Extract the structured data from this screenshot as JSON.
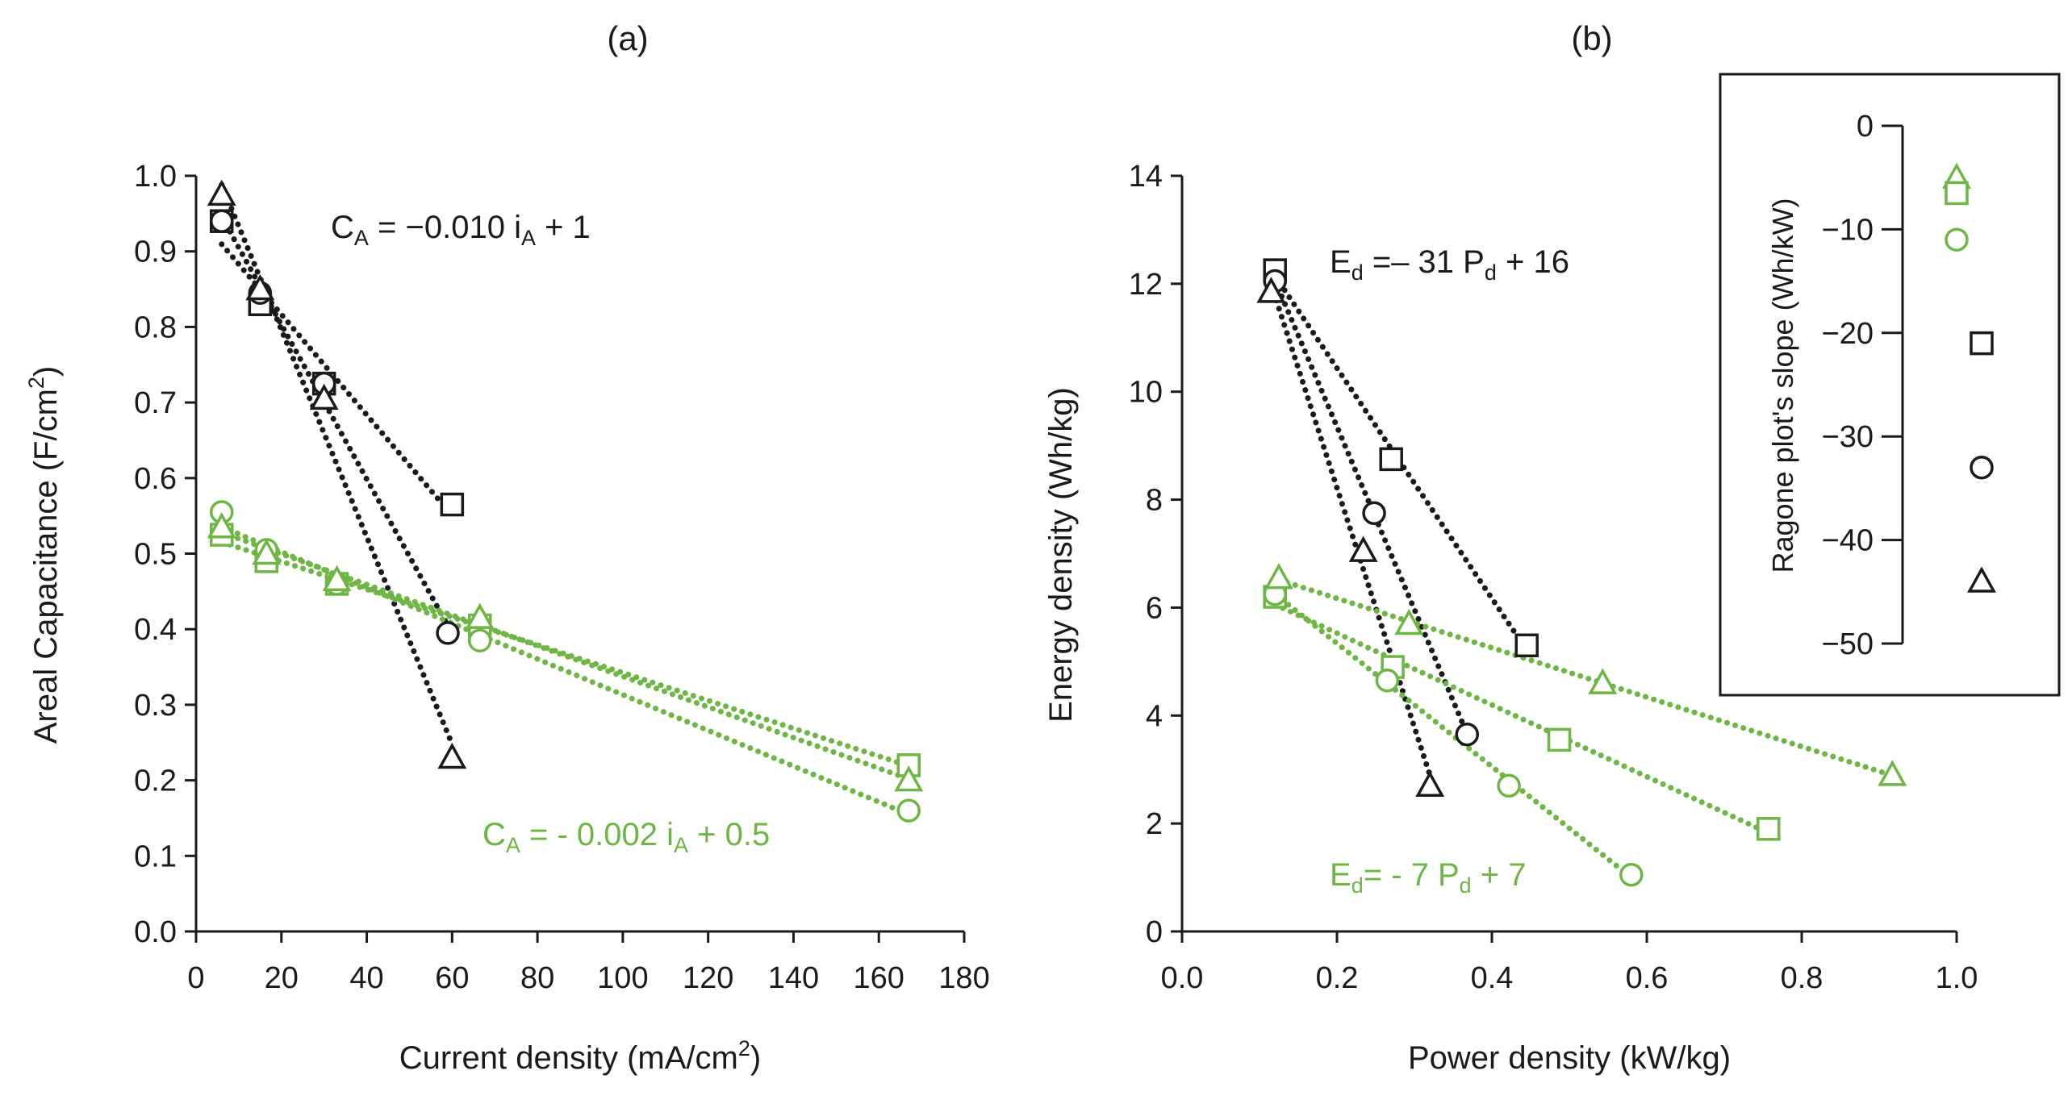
{
  "colors": {
    "black": "#1a1a1a",
    "green": "#6fb545"
  },
  "chart_data": [
    {
      "type": "scatter",
      "title": "(a)",
      "xlabel": "Current density (mA/cm",
      "xlabel_sup": "2",
      "xlabel_end": ")",
      "ylabel": "Areal Capacitance (F/cm",
      "ylabel_sup": "2",
      "ylabel_end": ")",
      "xlim": [
        0,
        180
      ],
      "ylim": [
        0,
        1.0
      ],
      "xticks": [
        "0",
        "20",
        "40",
        "60",
        "80",
        "100",
        "120",
        "140",
        "160",
        "180"
      ],
      "yticks": [
        "0.0",
        "0.1",
        "0.2",
        "0.3",
        "0.4",
        "0.5",
        "0.6",
        "0.7",
        "0.8",
        "0.9",
        "1.0"
      ],
      "series": [
        {
          "name": "black-square",
          "color": "black",
          "marker": "square",
          "x": [
            6,
            15,
            30,
            60
          ],
          "y": [
            0.94,
            0.83,
            0.725,
            0.565
          ]
        },
        {
          "name": "black-circle",
          "color": "black",
          "marker": "circle",
          "x": [
            6,
            15,
            30,
            59
          ],
          "y": [
            0.94,
            0.845,
            0.725,
            0.395
          ]
        },
        {
          "name": "black-triangle",
          "color": "black",
          "marker": "triangle",
          "x": [
            6,
            15,
            30,
            60
          ],
          "y": [
            0.975,
            0.85,
            0.705,
            0.23
          ]
        },
        {
          "name": "green-square",
          "color": "green",
          "marker": "square",
          "x": [
            6,
            16.5,
            33,
            66.5,
            167
          ],
          "y": [
            0.525,
            0.49,
            0.46,
            0.405,
            0.22
          ]
        },
        {
          "name": "green-circle",
          "color": "green",
          "marker": "circle",
          "x": [
            6,
            16.5,
            33,
            66.5,
            167
          ],
          "y": [
            0.555,
            0.505,
            0.46,
            0.385,
            0.16
          ]
        },
        {
          "name": "green-triangle",
          "color": "green",
          "marker": "triangle",
          "x": [
            6,
            16.5,
            33,
            66.5,
            167
          ],
          "y": [
            0.535,
            0.5,
            0.465,
            0.415,
            0.2
          ]
        }
      ],
      "annotations": [
        {
          "color": "black",
          "parts": [
            "C",
            "A",
            " = −0.010 i",
            "A",
            " + 1"
          ]
        },
        {
          "color": "green",
          "parts": [
            "C",
            "A",
            " = - 0.002 i",
            "A",
            " + 0.5"
          ]
        }
      ]
    },
    {
      "type": "scatter",
      "title": "(b)",
      "xlabel": "Power density (kW/kg)",
      "ylabel": "Energy density (Wh/kg)",
      "xlim": [
        0,
        1.0
      ],
      "ylim": [
        0,
        14
      ],
      "xticks": [
        "0.0",
        "0.2",
        "0.4",
        "0.6",
        "0.8",
        "1.0"
      ],
      "yticks": [
        "0",
        "2",
        "4",
        "6",
        "8",
        "10",
        "12",
        "14"
      ],
      "series": [
        {
          "name": "black-square",
          "color": "black",
          "marker": "square",
          "x": [
            0.12,
            0.27,
            0.445
          ],
          "y": [
            12.25,
            8.75,
            5.3
          ]
        },
        {
          "name": "black-circle",
          "color": "black",
          "marker": "circle",
          "x": [
            0.12,
            0.248,
            0.368
          ],
          "y": [
            12.05,
            7.75,
            3.65
          ]
        },
        {
          "name": "black-triangle",
          "color": "black",
          "marker": "triangle",
          "x": [
            0.115,
            0.234,
            0.32
          ],
          "y": [
            11.85,
            7.05,
            2.7
          ]
        },
        {
          "name": "green-square",
          "color": "green",
          "marker": "square",
          "x": [
            0.12,
            0.272,
            0.487,
            0.757
          ],
          "y": [
            6.2,
            4.9,
            3.55,
            1.9
          ]
        },
        {
          "name": "green-circle",
          "color": "green",
          "marker": "circle",
          "x": [
            0.12,
            0.265,
            0.422,
            0.58
          ],
          "y": [
            6.25,
            4.65,
            2.7,
            1.05
          ]
        },
        {
          "name": "green-triangle",
          "color": "green",
          "marker": "triangle",
          "x": [
            0.125,
            0.293,
            0.543,
            0.917
          ],
          "y": [
            6.55,
            5.7,
            4.6,
            2.9
          ]
        }
      ],
      "annotations": [
        {
          "color": "black",
          "parts": [
            "E",
            "d",
            " =– 31 P",
            "d",
            " + 16"
          ]
        },
        {
          "color": "green",
          "parts": [
            "E",
            "d",
            "= - 7 P",
            "d",
            " + 7"
          ]
        }
      ]
    },
    {
      "type": "scatter",
      "title": "",
      "ylabel": "Ragone plot's slope (Wh/kW)",
      "ylim": [
        -50,
        0
      ],
      "yticks": [
        "0",
        "−10",
        "−20",
        "−30",
        "−40",
        "−50"
      ],
      "points": [
        {
          "name": "green-triangle",
          "color": "green",
          "marker": "triangle",
          "y": -5
        },
        {
          "name": "green-square",
          "color": "green",
          "marker": "square",
          "y": -6.5
        },
        {
          "name": "green-circle",
          "color": "green",
          "marker": "circle",
          "y": -11
        },
        {
          "name": "black-square",
          "color": "black",
          "marker": "square",
          "y": -21
        },
        {
          "name": "black-circle",
          "color": "black",
          "marker": "circle",
          "y": -33
        },
        {
          "name": "black-triangle",
          "color": "black",
          "marker": "triangle",
          "y": -44
        }
      ]
    }
  ]
}
